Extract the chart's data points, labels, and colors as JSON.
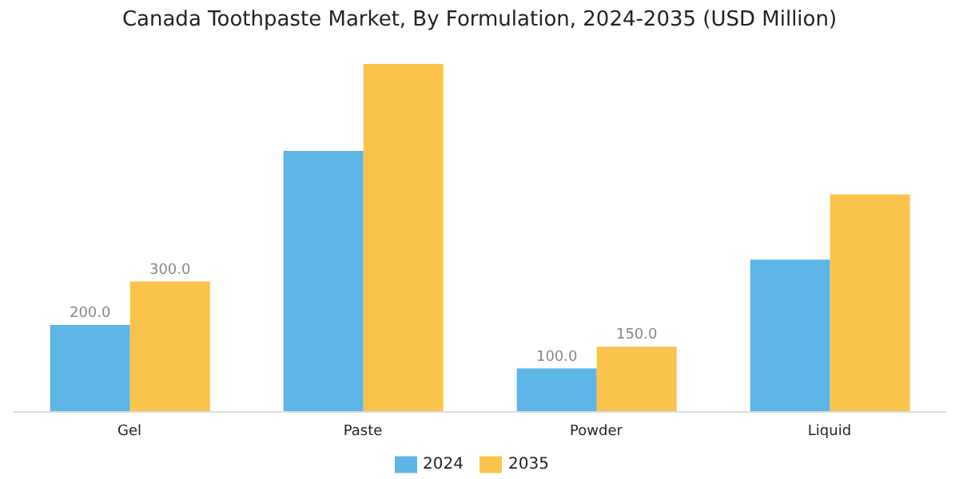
{
  "chart_data": {
    "type": "bar",
    "title": "Canada Toothpaste Market, By Formulation, 2024-2035 (USD Million)",
    "categories": [
      "Gel",
      "Paste",
      "Powder",
      "Liquid"
    ],
    "series": [
      {
        "name": "2024",
        "color": "#5db5e8",
        "values": [
          200,
          600,
          100,
          350
        ],
        "value_labels": [
          "200.0",
          null,
          "100.0",
          null
        ]
      },
      {
        "name": "2035",
        "color": "#fac44c",
        "values": [
          300,
          800,
          150,
          500
        ],
        "value_labels": [
          "300.0",
          null,
          "150.0",
          null
        ]
      }
    ],
    "legend": "bottom",
    "grid": false
  }
}
